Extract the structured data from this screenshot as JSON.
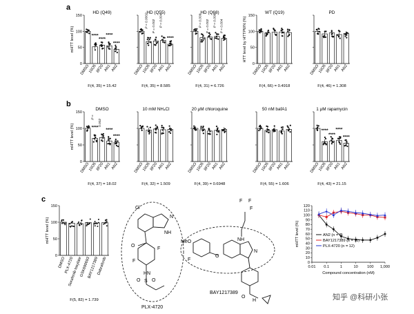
{
  "panels": {
    "a": {
      "label": "a",
      "ylabel": "mHTT level (%)",
      "ylabel_wt": "HTT level by HTTPWN (%)",
      "categories": [
        "DMSO",
        "10O5",
        "8F20",
        "AN1",
        "AN2"
      ],
      "yticks": [
        "0",
        "50",
        "100",
        "150"
      ],
      "charts": [
        {
          "title": "HD (Q49)",
          "stat": "F(4, 35) = 15.42",
          "values": [
            100,
            52,
            57,
            55,
            44
          ],
          "sig": [
            "",
            "****",
            "****",
            "****",
            "****"
          ],
          "pvals": []
        },
        {
          "title": "HD (Q55)",
          "stat": "F(4, 35) = 8.585",
          "values": [
            100,
            68,
            70,
            72,
            60
          ],
          "sig": [
            "",
            "",
            "",
            "",
            "****"
          ],
          "pvals": [
            "P = 0.0002",
            "P = 0.002",
            "P = 0.004"
          ]
        },
        {
          "title": "HD (Q68)",
          "stat": "F(4, 31) = 6.726",
          "values": [
            100,
            80,
            82,
            84,
            78
          ],
          "sig": [
            "",
            "",
            "",
            "",
            ""
          ],
          "pvals": [
            "P = 0.009",
            "P = 0.002",
            "P = 0.008",
            "P = 0.004"
          ]
        },
        {
          "title": "WT (Q19)",
          "stat": "F(4, 66) = 0.4918",
          "values": [
            100,
            95,
            97,
            98,
            96
          ],
          "sig": [
            "",
            "",
            "",
            "",
            ""
          ],
          "pvals": []
        },
        {
          "title": "PD",
          "stat": "F(4, 46) = 1.308",
          "values": [
            100,
            92,
            95,
            90,
            93
          ],
          "sig": [
            "",
            "",
            "",
            "",
            ""
          ],
          "pvals": []
        }
      ]
    },
    "b": {
      "label": "b",
      "ylabel": "mHTT level (%)",
      "categories": [
        "DMSO",
        "10O5",
        "8F20",
        "AN1",
        "AN2"
      ],
      "yticks": [
        "0",
        "50",
        "100",
        "150"
      ],
      "charts": [
        {
          "title": "DMSO",
          "stat": "F(4, 37) = 18.02",
          "values": [
            100,
            70,
            72,
            62,
            58
          ],
          "sig": [
            "",
            "****",
            "",
            "****",
            "****"
          ],
          "pvals": [
            "P =",
            "0.002"
          ]
        },
        {
          "title": "10 mM NH₄Cl",
          "stat": "F(4, 32) = 1.509",
          "values": [
            100,
            95,
            98,
            96,
            97
          ],
          "sig": [
            "",
            "",
            "",
            "",
            ""
          ],
          "pvals": []
        },
        {
          "title": "20 μM chloroquine",
          "stat": "F(4, 39) = 0.6948",
          "values": [
            100,
            96,
            92,
            94,
            97
          ],
          "sig": [
            "",
            "",
            "",
            "",
            ""
          ],
          "pvals": []
        },
        {
          "title": "50 nM bafA1",
          "stat": "F(4, 55) = 1.606",
          "values": [
            100,
            94,
            96,
            92,
            97
          ],
          "sig": [
            "",
            "",
            "",
            "",
            ""
          ],
          "pvals": []
        },
        {
          "title": "1 μM rapamycin",
          "stat": "F(4, 43) = 21.15",
          "values": [
            100,
            60,
            62,
            64,
            55
          ],
          "sig": [
            "",
            "****",
            "****",
            "****",
            "****"
          ],
          "pvals": []
        }
      ]
    },
    "c": {
      "label": "c",
      "bar": {
        "ylabel": "mHTT level (%)",
        "categories": [
          "DMSO",
          "PLX-4720",
          "Sorafenib tosylate",
          "GSK690693",
          "BAY1217389",
          "Dabrafenib"
        ],
        "values": [
          100,
          97,
          96,
          99,
          98,
          99
        ],
        "yticks": [
          "0",
          "50",
          "100",
          "150"
        ],
        "stat": "F(5, 82) = 1.739"
      },
      "molecules": {
        "plx_name": "PLX-4720",
        "bay_name": "BAY1217389",
        "atoms": {
          "cl": "Cl",
          "nh": "NH",
          "n": "N",
          "o": "O",
          "f": "F",
          "s": "S",
          "hn": "HN",
          "h": "H",
          "f3": "F",
          "meo": "MeO",
          "cf3": "F"
        }
      },
      "line": {
        "ylabel": "mHTT level (%)",
        "xlabel": "Compound concentration (nM)",
        "xticks": [
          "0.01",
          "0.1",
          "1",
          "10",
          "100",
          "1,000"
        ],
        "yticks": [
          "0",
          "10",
          "20",
          "30",
          "40",
          "50",
          "60",
          "70",
          "80",
          "90",
          "100",
          "110",
          "120"
        ],
        "legend": [
          "AN2 (n = 8)",
          "BAY1217389 (n = 11)",
          "PLX-4720 (n = 12)"
        ]
      }
    },
    "watermark": "知乎 @科研小张"
  },
  "chart_data": [
    {
      "type": "line",
      "title": "",
      "xlabel": "Compound concentration (nM)",
      "ylabel": "mHTT level (%)",
      "xscale": "log",
      "xlim": [
        0.01,
        1000
      ],
      "ylim": [
        0,
        120
      ],
      "grid": false,
      "legend_position": "bottom-left",
      "x": [
        0.03,
        0.1,
        0.3,
        1,
        3,
        10,
        30,
        100,
        300,
        1000
      ],
      "series": [
        {
          "name": "AN2 (n = 8)",
          "color": "#111111",
          "values": [
            100,
            80,
            70,
            55,
            50,
            48,
            47,
            47,
            52,
            60
          ]
        },
        {
          "name": "BAY1217389 (n = 11)",
          "color": "#e02020",
          "values": [
            100,
            96,
            105,
            108,
            105,
            103,
            100,
            100,
            96,
            95
          ]
        },
        {
          "name": "PLX-4720 (n = 12)",
          "color": "#2030d0",
          "values": [
            102,
            108,
            100,
            110,
            108,
            105,
            104,
            101,
            99,
            100
          ]
        }
      ]
    }
  ]
}
